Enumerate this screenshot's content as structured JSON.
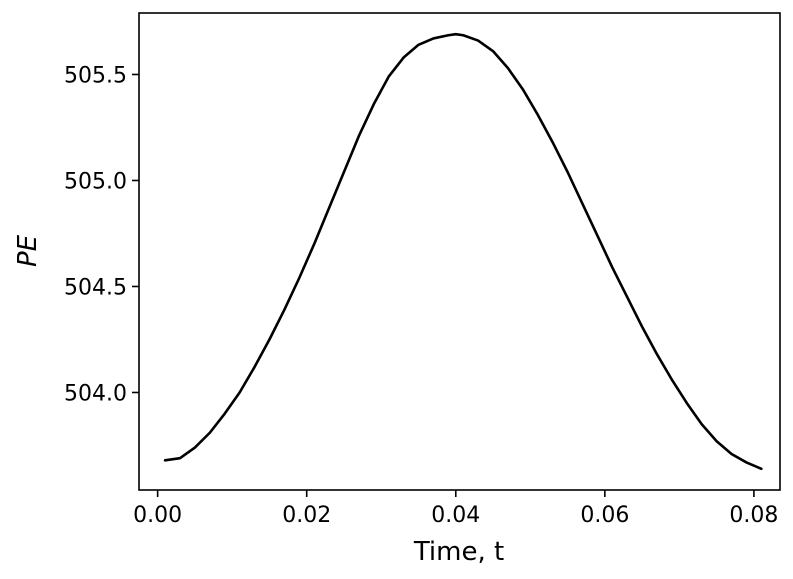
{
  "chart_data": {
    "type": "line",
    "xlabel": "Time, t",
    "ylabel": "PE",
    "xlim": [
      -0.0025,
      0.0835
    ],
    "ylim": [
      503.54,
      505.79
    ],
    "xticks": [
      0.0,
      0.02,
      0.04,
      0.06,
      0.08
    ],
    "xtick_labels": [
      "0.00",
      "0.02",
      "0.04",
      "0.06",
      "0.08"
    ],
    "yticks": [
      504.0,
      504.5,
      505.0,
      505.5
    ],
    "ytick_labels": [
      "504.0",
      "504.5",
      "505.0",
      "505.5"
    ],
    "grid": false,
    "series": [
      {
        "color": "#000000",
        "x": [
          0.001,
          0.003,
          0.005,
          0.007,
          0.009,
          0.011,
          0.013,
          0.015,
          0.017,
          0.019,
          0.021,
          0.023,
          0.025,
          0.027,
          0.029,
          0.031,
          0.033,
          0.035,
          0.037,
          0.039,
          0.04,
          0.041,
          0.043,
          0.045,
          0.047,
          0.049,
          0.051,
          0.053,
          0.055,
          0.057,
          0.059,
          0.061,
          0.063,
          0.065,
          0.067,
          0.069,
          0.071,
          0.073,
          0.075,
          0.077,
          0.079,
          0.081
        ],
        "y": [
          503.68,
          503.69,
          503.74,
          503.81,
          503.9,
          504.0,
          504.12,
          504.25,
          504.39,
          504.54,
          504.7,
          504.87,
          505.04,
          505.21,
          505.36,
          505.49,
          505.58,
          505.64,
          505.67,
          505.685,
          505.69,
          505.685,
          505.66,
          505.61,
          505.53,
          505.43,
          505.31,
          505.18,
          505.04,
          504.89,
          504.74,
          504.59,
          504.45,
          504.31,
          504.18,
          504.06,
          503.95,
          503.85,
          503.77,
          503.71,
          503.67,
          503.64
        ]
      }
    ]
  }
}
